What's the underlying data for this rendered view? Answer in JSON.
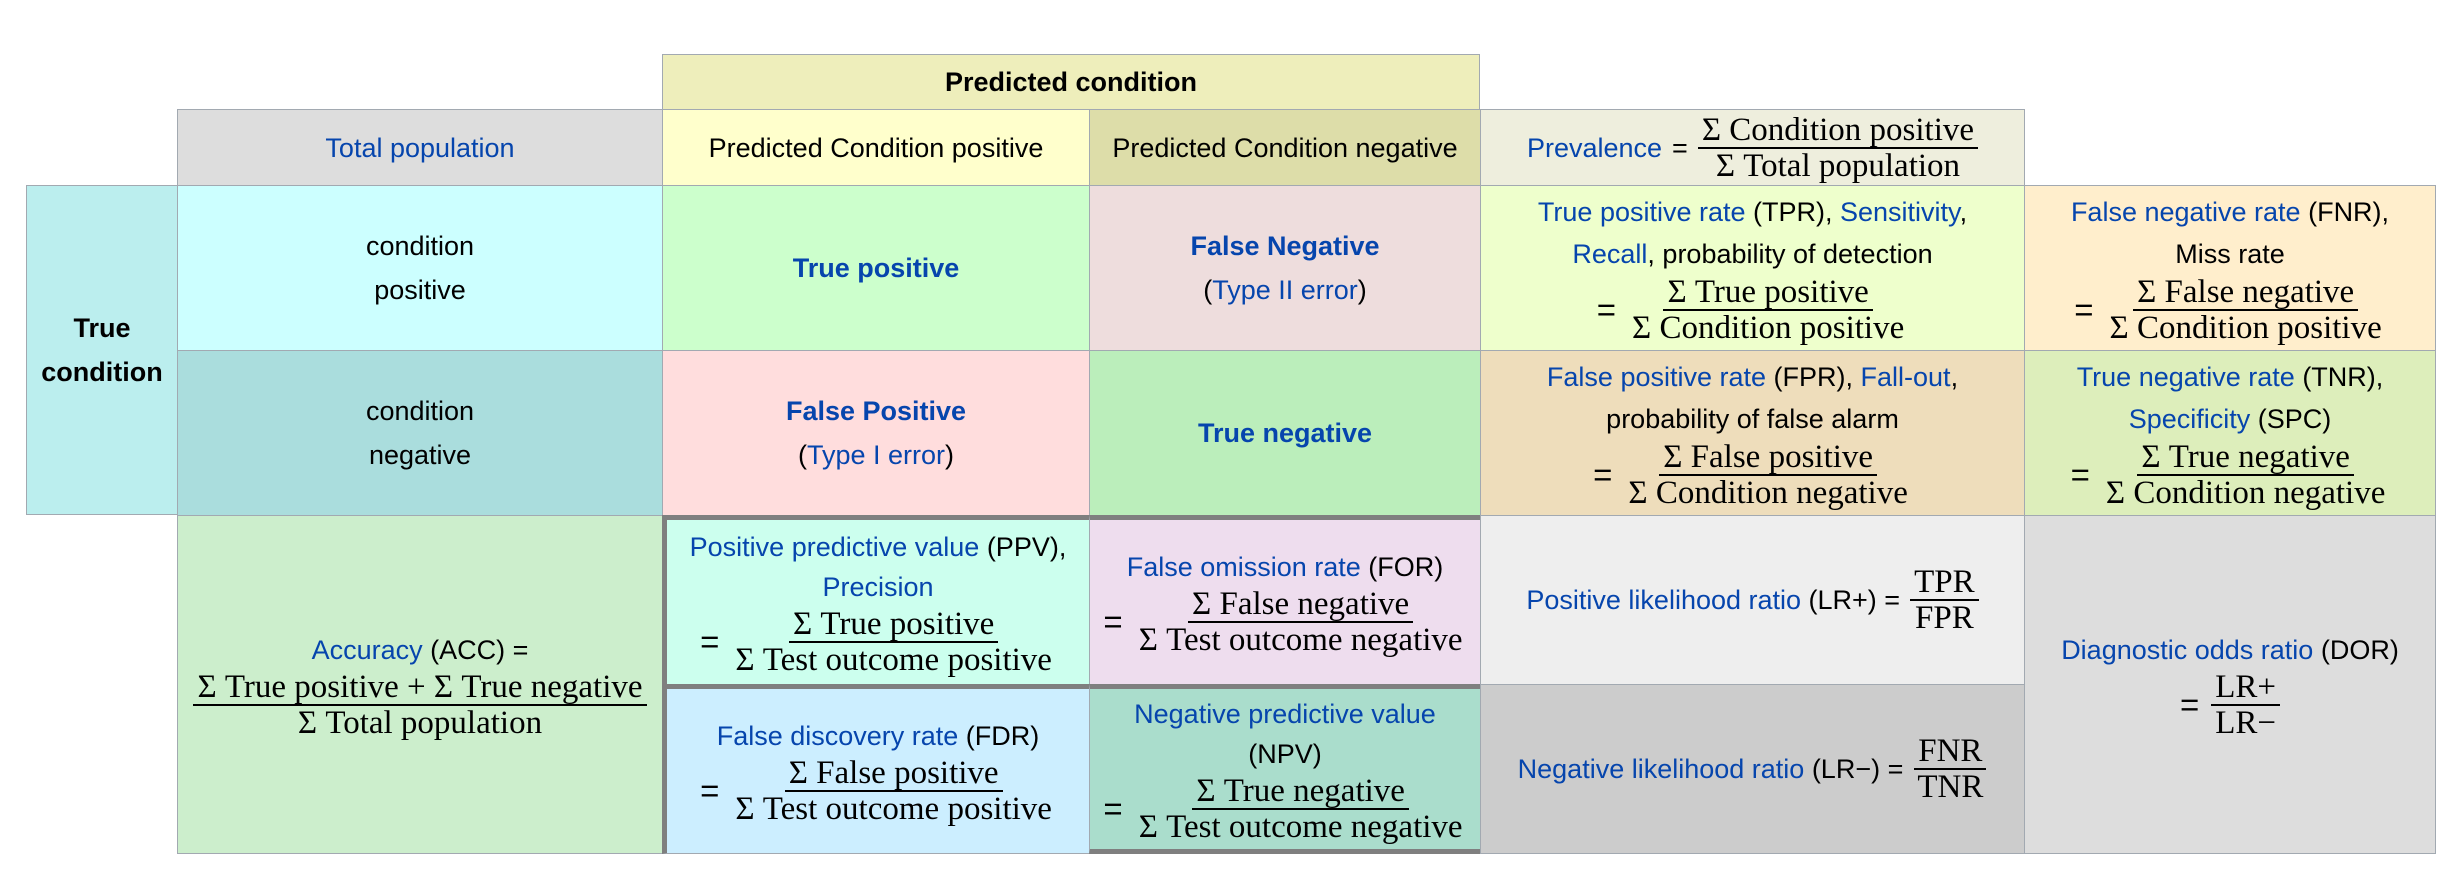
{
  "header": {
    "predicted_condition": "Predicted condition",
    "total_population": "Total population",
    "pred_pos": "Predicted Condition positive",
    "pred_neg": "Predicted Condition negative",
    "prevalence": {
      "label": "Prevalence",
      "eq": "=",
      "num": "Σ Condition positive",
      "den": "Σ Total population"
    }
  },
  "true_condition": {
    "line1": "True",
    "line2": "condition"
  },
  "rows": {
    "cond_pos": {
      "line1": "condition",
      "line2": "positive"
    },
    "cond_neg": {
      "line1": "condition",
      "line2": "negative"
    }
  },
  "cells": {
    "tp": "True positive",
    "fn": {
      "title": "False Negative",
      "open": "(",
      "type": "Type II error",
      "close": ")"
    },
    "fp": {
      "title": "False Positive",
      "open": "(",
      "type": "Type I error",
      "close": ")"
    },
    "tn": "True negative"
  },
  "tpr": {
    "label": "True positive rate",
    "abbr": " (TPR), ",
    "sens": "Sensitivity",
    "comma": ",",
    "recall": "Recall",
    "rest": ", probability of detection",
    "eq": "=",
    "num": "Σ True positive",
    "den": "Σ Condition positive"
  },
  "fnr": {
    "label": "False negative rate",
    "abbr": " (FNR),",
    "miss": "Miss rate",
    "eq": "=",
    "num": "Σ False negative",
    "den": "Σ Condition positive"
  },
  "fpr": {
    "label": "False positive rate",
    "abbr": " (FPR), ",
    "fallout": "Fall-out",
    "comma": ",",
    "rest": "probability of false alarm",
    "eq": "=",
    "num": "Σ False positive",
    "den": "Σ Condition negative"
  },
  "tnr": {
    "label": "True negative rate",
    "abbr": " (TNR),",
    "spec": "Specificity",
    "spc": " (SPC)",
    "eq": "=",
    "num": "Σ True negative",
    "den": "Σ Condition negative"
  },
  "acc": {
    "label": "Accuracy",
    "abbr": " (ACC) =",
    "num": "Σ True positive + Σ True negative",
    "den": "Σ Total population"
  },
  "ppv": {
    "label": "Positive predictive value",
    "abbr": " (PPV),",
    "prec": "Precision",
    "eq": "=",
    "num": "Σ True positive",
    "den": "Σ Test outcome positive"
  },
  "for": {
    "label": "False omission rate",
    "abbr": " (FOR)",
    "eq": "=",
    "num": "Σ False negative",
    "den": "Σ Test outcome negative"
  },
  "lrp": {
    "label": "Positive likelihood ratio",
    "abbr": " (LR+) =",
    "num": "TPR",
    "den": "FPR"
  },
  "fdr": {
    "label": "False discovery rate",
    "abbr": " (FDR)",
    "eq": "=",
    "num": "Σ False positive",
    "den": "Σ Test outcome positive"
  },
  "npv": {
    "label": "Negative predictive value",
    "abbr": "(NPV)",
    "eq": "=",
    "num": "Σ True negative",
    "den": "Σ Test outcome negative"
  },
  "lrn": {
    "label": "Negative likelihood ratio",
    "abbr": " (LR−) =",
    "num": "FNR",
    "den": "TNR"
  },
  "dor": {
    "label": "Diagnostic odds ratio",
    "abbr": " (DOR)",
    "eq": "=",
    "num": "LR+",
    "den": "LR−"
  },
  "colors": {
    "predicted_header": "#eeeebb",
    "total_pop": "#dddddd",
    "pred_pos_bg": "#ffffcc",
    "pred_neg_bg": "#dddda9",
    "prevalence_bg": "#eeeedd",
    "true_cond": "#bbeeee",
    "cond_pos": "#ccffff",
    "cond_neg": "#aadddd",
    "tp": "#ccffcc",
    "fn": "#eedddd",
    "fp": "#ffdddd",
    "tn": "#bbeebb",
    "tpr": "#eeffcc",
    "fnr": "#ffeecc",
    "fpr": "#eeddbb",
    "tnr": "#ddeebb",
    "acc": "#cceecc",
    "ppv": "#ccffee",
    "for": "#eeddee",
    "lrp": "#eeeeee",
    "fdr": "#cceeff",
    "npv": "#aaddcc",
    "lrn": "#cccccc",
    "dor": "#dddddd",
    "link": "#0645ad"
  }
}
